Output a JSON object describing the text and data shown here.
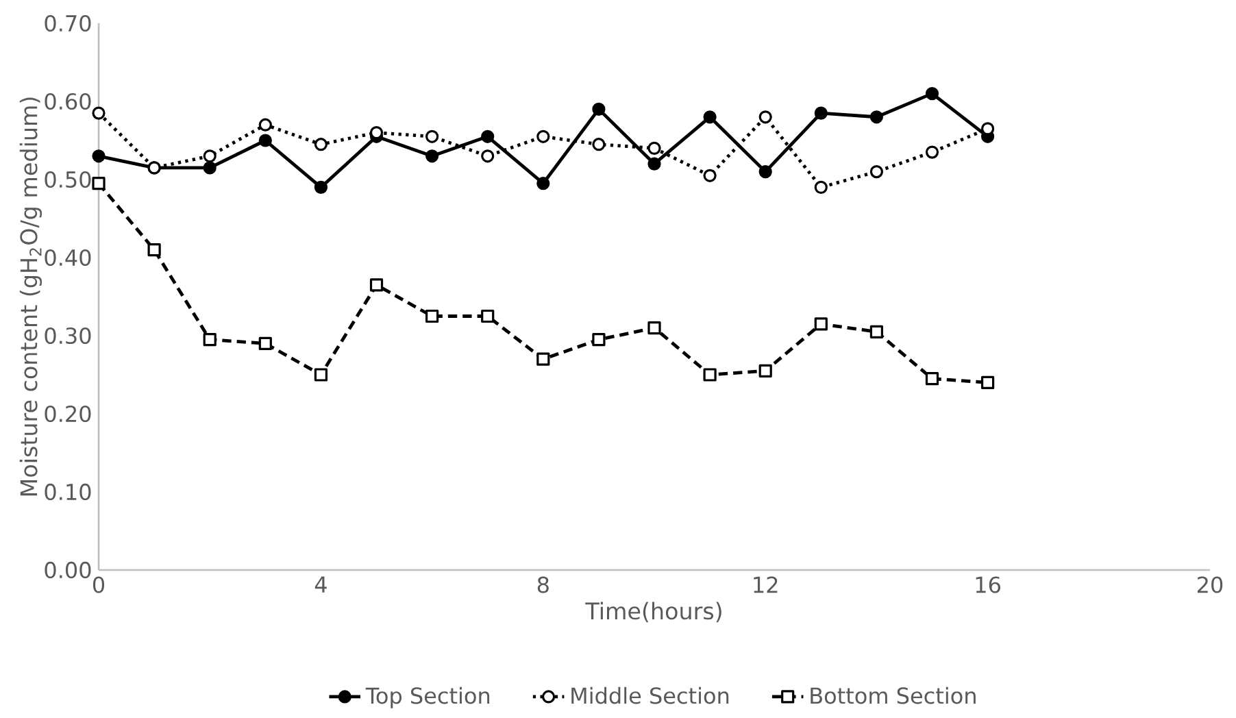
{
  "chart_data": {
    "type": "line",
    "xlabel": "Time(hours)",
    "ylabel": "Moisture content (gH$_{2}$O/g medium)",
    "x": [
      0,
      1,
      2,
      3,
      4,
      5,
      6,
      7,
      8,
      9,
      10,
      11,
      12,
      13,
      14,
      15,
      16
    ],
    "series": [
      {
        "name": "Top Section",
        "color": "#000000",
        "marker": "circle",
        "line_style": "solid",
        "values": [
          0.53,
          0.515,
          0.515,
          0.55,
          0.49,
          0.555,
          0.53,
          0.555,
          0.495,
          0.59,
          0.52,
          0.58,
          0.51,
          0.585,
          0.58,
          0.61,
          0.555
        ]
      },
      {
        "name": "Middle Section",
        "color": "#000000",
        "marker": "circle",
        "line_style": "dotted",
        "values": [
          0.585,
          0.515,
          0.53,
          0.57,
          0.545,
          0.56,
          0.555,
          0.53,
          0.555,
          0.545,
          0.54,
          0.505,
          0.58,
          0.49,
          0.51,
          0.535,
          0.565
        ]
      },
      {
        "name": "Bottom Section",
        "color": "#000000",
        "marker": "square",
        "line_style": "dashed",
        "values": [
          0.495,
          0.41,
          0.295,
          0.29,
          0.25,
          0.365,
          0.325,
          0.325,
          0.27,
          0.295,
          0.31,
          0.25,
          0.255,
          0.315,
          0.305,
          0.245,
          0.24
        ]
      }
    ],
    "xlim": [
      0,
      20
    ],
    "xticks": [
      0,
      4,
      8,
      12,
      16,
      20
    ],
    "ylim": [
      0,
      0.7
    ],
    "yticks": [
      {
        "value": 0,
        "label": "0.00"
      },
      {
        "value": 0.1,
        "label": "0.10"
      },
      {
        "value": 0.2,
        "label": "0.20"
      },
      {
        "value": 0.3,
        "label": "0.30"
      },
      {
        "value": 0.4,
        "label": "0.40"
      },
      {
        "value": 0.5,
        "label": "0.50"
      },
      {
        "value": 0.6,
        "label": "0.60"
      },
      {
        "value": 0.7,
        "label": "0.70"
      }
    ],
    "grid": false,
    "legend": "bottom"
  }
}
